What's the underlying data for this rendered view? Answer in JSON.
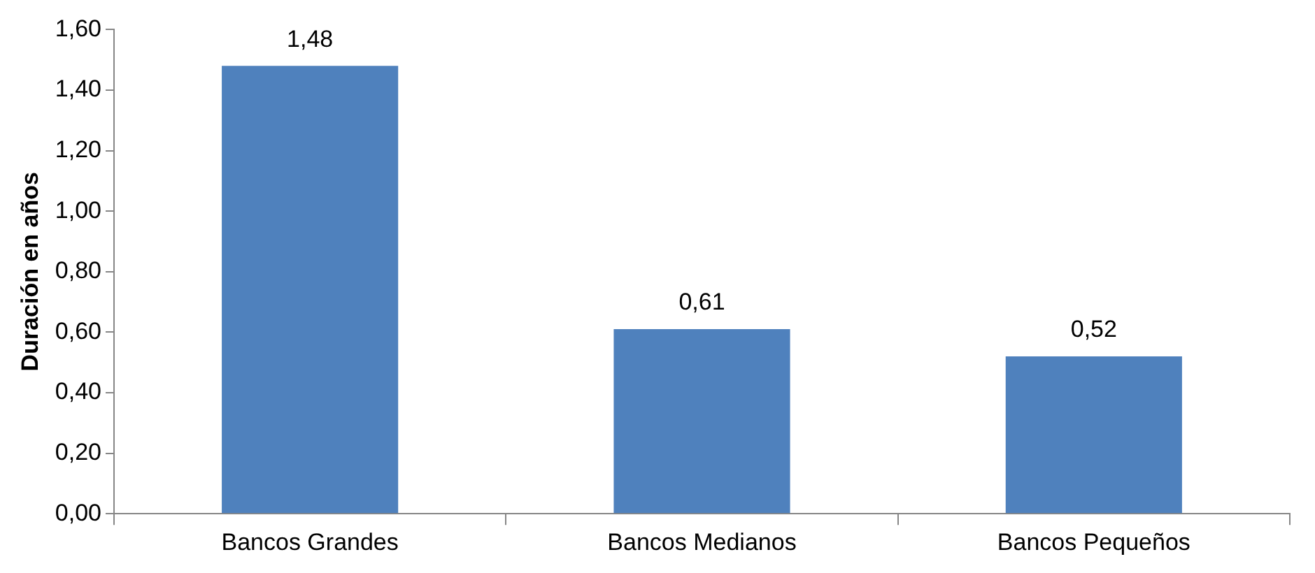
{
  "chart_data": {
    "type": "bar",
    "ylabel": "Duración en años",
    "categories": [
      "Bancos Grandes",
      "Bancos Medianos",
      "Bancos Pequeños"
    ],
    "values": [
      1.48,
      0.61,
      0.52
    ],
    "color": "#4f81bd",
    "value_labels": [
      "1,48",
      "0,61",
      "0,52"
    ],
    "ylim": [
      0,
      1.6
    ],
    "yticks": [
      {
        "value": 0,
        "label": "0,00"
      },
      {
        "value": 0.2,
        "label": "0,20"
      },
      {
        "value": 0.4,
        "label": "0,40"
      },
      {
        "value": 0.6,
        "label": "0,60"
      },
      {
        "value": 0.8,
        "label": "0,80"
      },
      {
        "value": 1.0,
        "label": "1,00"
      },
      {
        "value": 1.2,
        "label": "1,20"
      },
      {
        "value": 1.4,
        "label": "1,40"
      },
      {
        "value": 1.6,
        "label": "1,60"
      }
    ],
    "grid": false,
    "legend": false
  }
}
